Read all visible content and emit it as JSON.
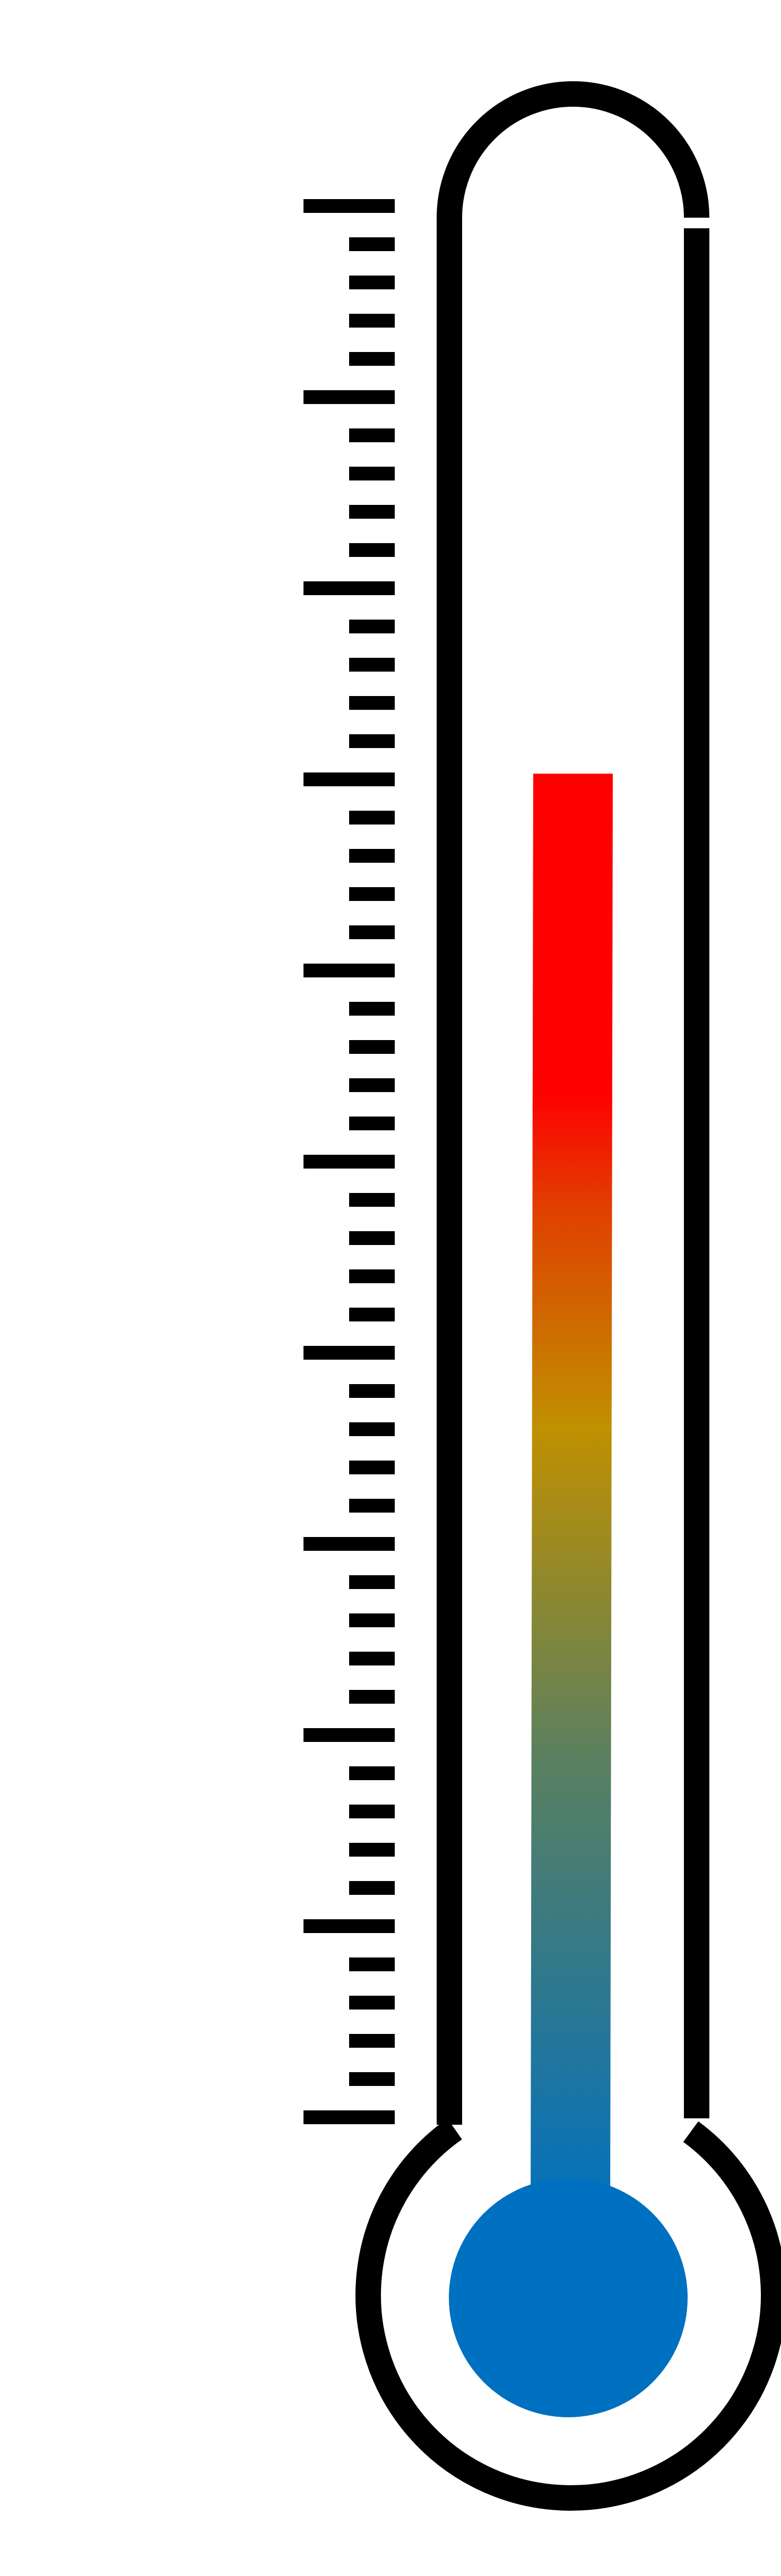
{
  "thermometer": {
    "scale": {
      "major_tick_count": 11,
      "minor_ticks_per_interval": 4
    },
    "fill_level": 0.703,
    "colors": {
      "outline": "#000000",
      "background": "#ffffff",
      "bulb": "#0070c0",
      "gradient_hot": "#ff0000",
      "gradient_mid_hot": "#e04000",
      "gradient_warm": "#c09000",
      "gradient_mid_cool": "#5a8060",
      "gradient_cool": "#0070c0"
    },
    "icons": {
      "thermometer": "thermometer-icon"
    }
  }
}
